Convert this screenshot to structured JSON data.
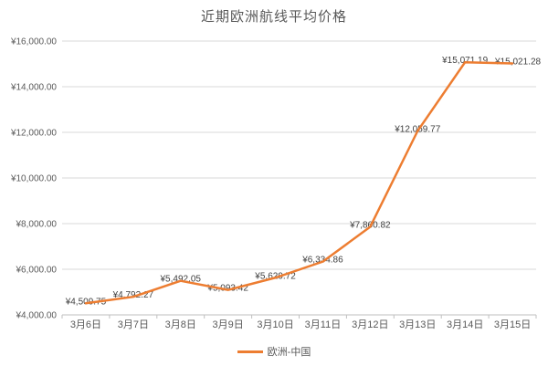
{
  "chart_data": {
    "type": "line",
    "title": "近期欧洲航线平均价格",
    "categories": [
      "3月6日",
      "3月7日",
      "3月8日",
      "3月9日",
      "3月10日",
      "3月11日",
      "3月12日",
      "3月13日",
      "3月14日",
      "3月15日"
    ],
    "series": [
      {
        "name": "欧洲-中国",
        "color": "#ED7D31",
        "values": [
          4509.75,
          4792.27,
          5492.05,
          5093.42,
          5629.72,
          6334.86,
          7860.82,
          12059.77,
          15071.19,
          15021.28
        ],
        "point_labels": [
          "¥4,509.75",
          "¥4,792.27",
          "¥5,492.05",
          "¥5,093.42",
          "¥5,629.72",
          "¥6,334.86",
          "¥7,860.82",
          "¥12,059.77",
          "¥15,071.19",
          "¥15,021.28"
        ]
      }
    ],
    "ylim": [
      4000,
      16000
    ],
    "y_tick_values": [
      4000,
      6000,
      8000,
      10000,
      12000,
      14000,
      16000
    ],
    "y_tick_labels": [
      "¥4,000.00",
      "¥6,000.00",
      "¥8,000.00",
      "¥10,000.00",
      "¥12,000.00",
      "¥14,000.00",
      "¥16,000.00"
    ],
    "grid": true,
    "legend_position": "bottom",
    "colors": {
      "accent": "#ED7D31",
      "gridline": "#D9D9D9",
      "axis_line": "#BFBFBF",
      "axis_text": "#595959",
      "data_label_text": "#404040",
      "background": "#FFFFFF"
    }
  }
}
